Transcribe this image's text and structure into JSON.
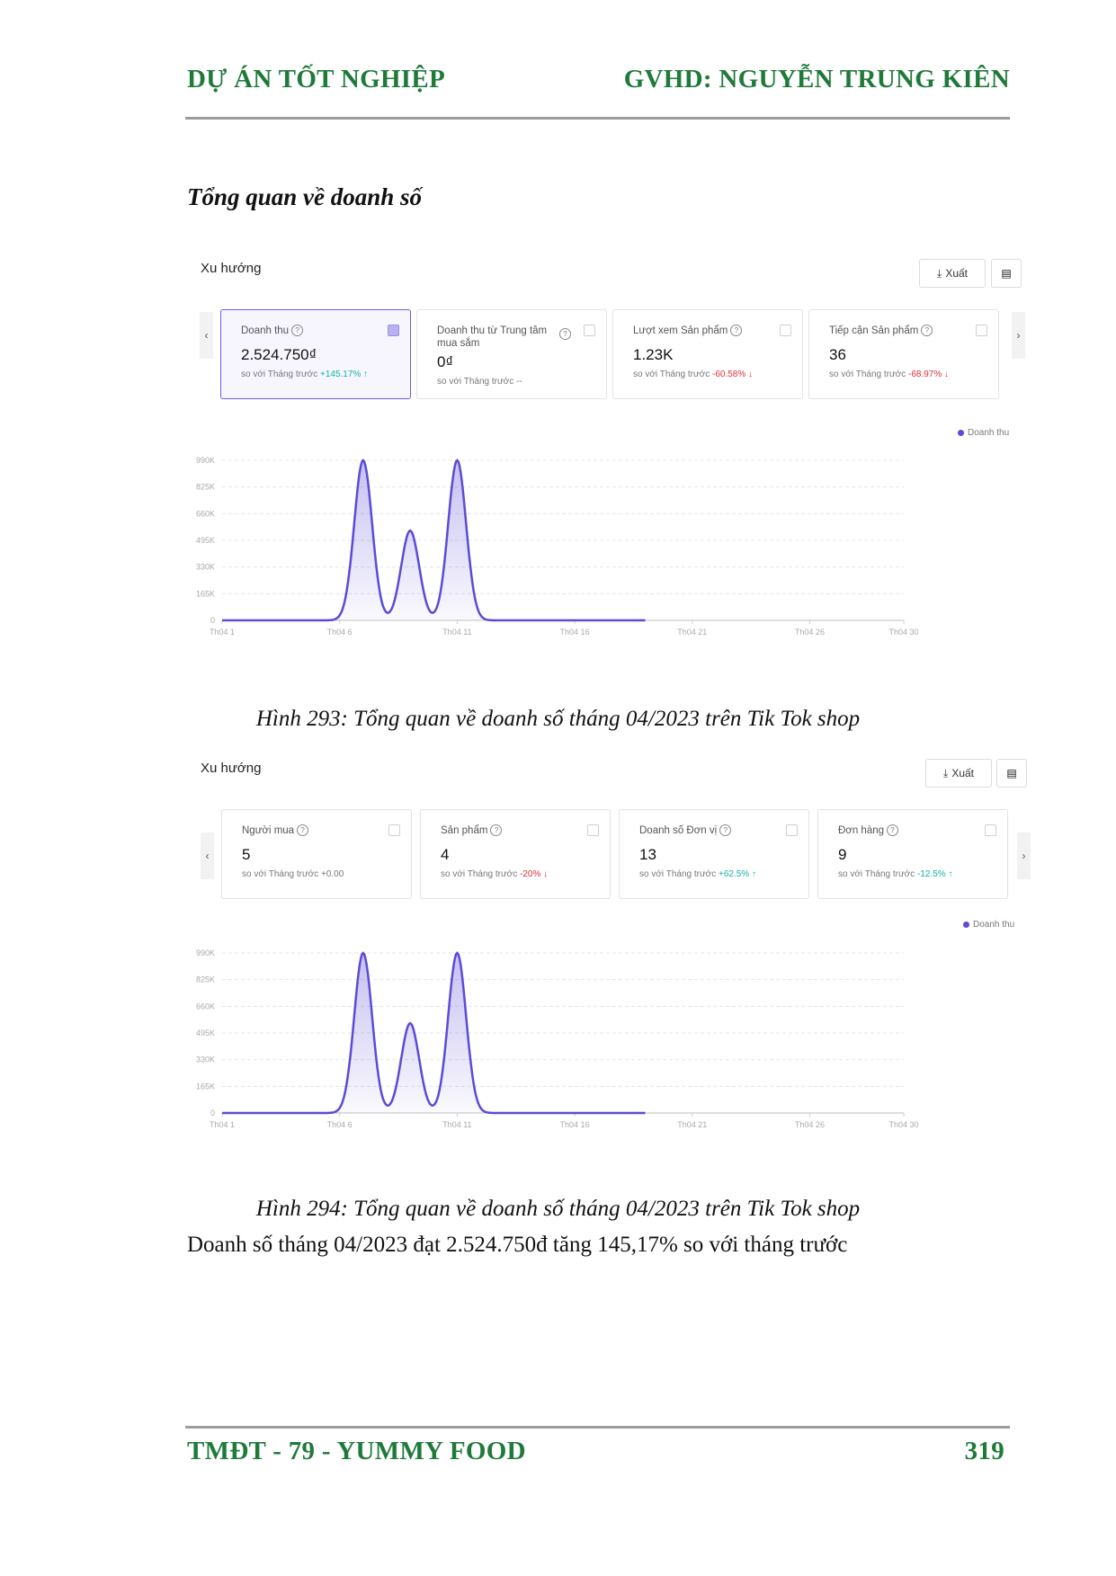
{
  "header": {
    "left": "DỰ ÁN TỐT NGHIỆP",
    "right": "GVHD: NGUYỄN TRUNG KIÊN"
  },
  "section_title": "Tổng quan về doanh số",
  "panels": [
    {
      "title": "Xu hướng",
      "export_label": "Xuất",
      "legend": "Doanh thu",
      "cards": [
        {
          "label": "Doanh thu",
          "value": "2.524.750₫",
          "cmp_prefix": "so với Tháng trước",
          "cmp_value": "+145.17%",
          "trend": "up",
          "active": true
        },
        {
          "label": "Doanh thu từ Trung tâm mua sắm",
          "value": "0₫",
          "cmp_prefix": "so với Tháng trước",
          "cmp_value": "--",
          "trend": "none",
          "active": false
        },
        {
          "label": "Lượt xem Sản phẩm",
          "value": "1.23K",
          "cmp_prefix": "so với Tháng trước",
          "cmp_value": "-60.58%",
          "trend": "down",
          "active": false
        },
        {
          "label": "Tiếp cận Sản phẩm",
          "value": "36",
          "cmp_prefix": "so với Tháng trước",
          "cmp_value": "-68.97%",
          "trend": "down",
          "active": false
        }
      ]
    },
    {
      "title": "Xu hướng",
      "export_label": "Xuất",
      "legend": "Doanh thu",
      "cards": [
        {
          "label": "Người mua",
          "value": "5",
          "cmp_prefix": "so với Tháng trước",
          "cmp_value": "+0.00",
          "trend": "none",
          "active": false
        },
        {
          "label": "Sản phẩm",
          "value": "4",
          "cmp_prefix": "so với Tháng trước",
          "cmp_value": "-20%",
          "trend": "down",
          "active": false
        },
        {
          "label": "Doanh số Đơn vị",
          "value": "13",
          "cmp_prefix": "so với Tháng trước",
          "cmp_value": "+62.5%",
          "trend": "up",
          "active": false
        },
        {
          "label": "Đơn hàng",
          "value": "9",
          "cmp_prefix": "so với Tháng trước",
          "cmp_value": "-12.5%",
          "trend": "up",
          "active": false
        }
      ]
    }
  ],
  "captions": [
    "Hình 293: Tổng quan về doanh số tháng 04/2023 trên Tik Tok shop",
    "Hình 294: Tổng quan về doanh số tháng 04/2023 trên Tik Tok shop"
  ],
  "body_text": "Doanh số tháng 04/2023 đạt 2.524.750đ tăng 145,17% so với tháng trước",
  "footer": {
    "left": "TMĐT - 79 - YUMMY FOOD",
    "right": "319"
  },
  "colors": {
    "heading_green": "#1f7a3a",
    "series": "#5b4bd6",
    "up": "#15b0a8",
    "down": "#e0303a"
  },
  "chart_data": [
    {
      "type": "area",
      "series": [
        {
          "name": "Doanh thu",
          "peaks": [
            {
              "day": 7,
              "value": 990000
            },
            {
              "day": 9,
              "value": 555000
            },
            {
              "day": 11,
              "value": 990000
            }
          ]
        }
      ],
      "x_ticks": [
        "Th04 1",
        "Th04 6",
        "Th04 11",
        "Th04 16",
        "Th04 21",
        "Th04 26",
        "Th04 30"
      ],
      "y_ticks": [
        "990K",
        "825K",
        "660K",
        "495K",
        "330K",
        "165K",
        "0"
      ],
      "ylim": [
        0,
        990000
      ],
      "xlim": [
        1,
        30
      ],
      "data_until_day": 19,
      "grid": true,
      "legend_position": "top-right"
    },
    {
      "type": "area",
      "series": [
        {
          "name": "Doanh thu",
          "peaks": [
            {
              "day": 7,
              "value": 990000
            },
            {
              "day": 9,
              "value": 555000
            },
            {
              "day": 11,
              "value": 990000
            }
          ]
        }
      ],
      "x_ticks": [
        "Th04 1",
        "Th04 6",
        "Th04 11",
        "Th04 16",
        "Th04 21",
        "Th04 26",
        "Th04 30"
      ],
      "y_ticks": [
        "990K",
        "825K",
        "660K",
        "495K",
        "330K",
        "165K",
        "0"
      ],
      "ylim": [
        0,
        990000
      ],
      "xlim": [
        1,
        30
      ],
      "data_until_day": 19,
      "grid": true,
      "legend_position": "top-right"
    }
  ]
}
